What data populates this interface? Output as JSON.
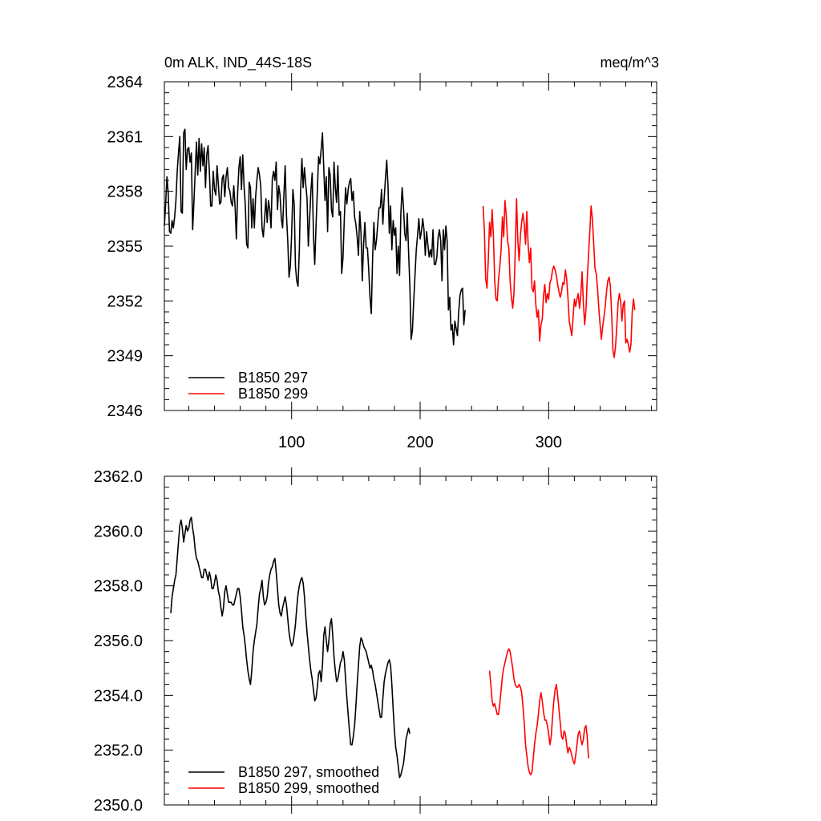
{
  "chart_data": [
    {
      "type": "line",
      "title_left": "0m ALK, IND_44S-18S",
      "title_right": "meq/m^3",
      "xlabel": "",
      "ylabel": "",
      "xlim": [
        1,
        384
      ],
      "ylim": [
        2346,
        2364
      ],
      "xticks": [
        100,
        200,
        300
      ],
      "xtick_labels": [
        "100",
        "200",
        "300"
      ],
      "yticks": [
        2346,
        2349,
        2352,
        2355,
        2358,
        2361,
        2364
      ],
      "ytick_labels": [
        "2346",
        "2349",
        "2352",
        "2355",
        "2358",
        "2361",
        "2364"
      ],
      "legend_location": "bottom-left",
      "series": [
        {
          "name": "B1850 297",
          "color": "#000000",
          "x_start": 1,
          "values": [
            2356.1,
            2357.3,
            2358.8,
            2357.9,
            2355.8,
            2355.7,
            2356.4,
            2356.0,
            2356.6,
            2357.5,
            2359.1,
            2360.1,
            2361.0,
            2356.9,
            2356.8,
            2361.2,
            2361.4,
            2359.2,
            2360.3,
            2360.4,
            2359.6,
            2360.1,
            2355.9,
            2357.4,
            2359.1,
            2360.7,
            2358.9,
            2360.9,
            2359.1,
            2360.6,
            2359.4,
            2360.4,
            2358.2,
            2360.0,
            2360.5,
            2359.1,
            2357.2,
            2357.2,
            2359.1,
            2358.1,
            2357.8,
            2359.4,
            2358.4,
            2357.3,
            2357.4,
            2358.7,
            2358.9,
            2357.7,
            2358.8,
            2359.3,
            2358.2,
            2358.0,
            2357.4,
            2357.2,
            2358.3,
            2357.2,
            2355.4,
            2357.9,
            2359.3,
            2359.9,
            2358.1,
            2360.0,
            2358.3,
            2357.2,
            2355.1,
            2354.9,
            2358.5,
            2358.2,
            2356.0,
            2357.6,
            2356.0,
            2357.7,
            2358.6,
            2359.3,
            2358.9,
            2358.3,
            2356.0,
            2355.5,
            2356.5,
            2357.6,
            2356.3,
            2357.5,
            2357.0,
            2356.0,
            2358.7,
            2359.1,
            2358.6,
            2359.6,
            2357.0,
            2358.3,
            2357.8,
            2356.5,
            2356.0,
            2357.8,
            2359.4,
            2356.7,
            2355.3,
            2353.3,
            2353.9,
            2355.6,
            2358.1,
            2357.3,
            2353.9,
            2353.1,
            2352.8,
            2354.8,
            2358.0,
            2359.8,
            2358.2,
            2359.3,
            2358.4,
            2357.6,
            2355.0,
            2356.5,
            2358.0,
            2359.0,
            2355.6,
            2354.0,
            2356.1,
            2358.0,
            2359.9,
            2359.5,
            2360.3,
            2361.2,
            2359.3,
            2357.5,
            2358.8,
            2355.8,
            2359.3,
            2358.9,
            2357.0,
            2356.6,
            2359.6,
            2358.2,
            2357.4,
            2359.4,
            2356.7,
            2356.9,
            2353.5,
            2354.4,
            2356.5,
            2358.2,
            2357.3,
            2358.1,
            2358.5,
            2358.7,
            2357.5,
            2358.0,
            2356.6,
            2356.2,
            2355.5,
            2354.5,
            2356.9,
            2355.7,
            2353.1,
            2355.1,
            2356.3,
            2354.9,
            2354.9,
            2353.7,
            2352.2,
            2351.3,
            2354.3,
            2356.3,
            2354.8,
            2355.3,
            2356.2,
            2357.1,
            2357.1,
            2358.1,
            2356.2,
            2357.6,
            2358.7,
            2359.7,
            2358.3,
            2355.7,
            2357.2,
            2354.8,
            2356.4,
            2355.6,
            2356.0,
            2353.5,
            2355.0,
            2353.4,
            2356.8,
            2358.2,
            2357.2,
            2355.7,
            2355.3,
            2356.8,
            2354.7,
            2352.8,
            2349.9,
            2350.4,
            2352.0,
            2353.4,
            2354.8,
            2355.6,
            2356.5,
            2355.4,
            2355.8,
            2356.5,
            2355.9,
            2354.5,
            2355.8,
            2355.1,
            2354.4,
            2354.8,
            2354.4,
            2355.9,
            2354.0,
            2354.0,
            2354.4,
            2355.5,
            2355.9,
            2355.3,
            2353.1,
            2355.9,
            2354.8,
            2356.1,
            2355.3,
            2351.5,
            2352.2,
            2350.4,
            2350.7,
            2349.6,
            2350.9,
            2350.5,
            2350.1,
            2351.4,
            2352.3,
            2352.6,
            2352.7,
            2350.7,
            2351.5
          ]
        },
        {
          "name": "B1850 299",
          "color": "#ff0000",
          "x_start": 249,
          "values": [
            2357.2,
            2355.8,
            2353.2,
            2352.7,
            2354.2,
            2356.3,
            2355.5,
            2357.0,
            2355.6,
            2353.1,
            2352.1,
            2352.0,
            2353.2,
            2353.9,
            2354.8,
            2356.6,
            2355.5,
            2357.5,
            2356.7,
            2355.3,
            2354.9,
            2353.1,
            2352.2,
            2351.6,
            2352.4,
            2354.8,
            2357.6,
            2355.3,
            2354.2,
            2355.6,
            2356.3,
            2356.8,
            2356.2,
            2355.1,
            2356.9,
            2355.1,
            2354.1,
            2354.9,
            2352.7,
            2352.5,
            2353.1,
            2351.8,
            2351.1,
            2351.5,
            2349.8,
            2350.7,
            2351.0,
            2352.3,
            2352.9,
            2351.9,
            2352.4,
            2352.1,
            2353.0,
            2353.2,
            2353.7,
            2353.9,
            2353.7,
            2353.4,
            2352.9,
            2352.5,
            2352.2,
            2352.5,
            2353.0,
            2352.9,
            2353.7,
            2353.2,
            2352.2,
            2350.9,
            2350.5,
            2350.1,
            2351.1,
            2352.1,
            2351.7,
            2352.1,
            2352.4,
            2351.6,
            2352.3,
            2353.6,
            2351.9,
            2350.7,
            2351.5,
            2353.2,
            2354.5,
            2355.8,
            2357.2,
            2356.5,
            2355.2,
            2353.8,
            2353.5,
            2352.7,
            2351.6,
            2350.7,
            2349.9,
            2350.6,
            2351.1,
            2351.7,
            2352.5,
            2353.1,
            2353.3,
            2352.8,
            2351.3,
            2349.3,
            2348.9,
            2349.5,
            2350.6,
            2351.9,
            2352.4,
            2352.0,
            2350.9,
            2351.8,
            2352.0,
            2349.7,
            2349.9,
            2349.6,
            2349.2,
            2349.6,
            2351.4,
            2352.1,
            2351.5
          ]
        }
      ]
    },
    {
      "type": "line",
      "xlabel": "",
      "ylabel": "",
      "xlim": [
        1,
        384
      ],
      "ylim": [
        2350,
        2362
      ],
      "yticks": [
        2350,
        2352,
        2354,
        2356,
        2358,
        2360,
        2362
      ],
      "ytick_labels": [
        "2350.0",
        "2352.0",
        "2354.0",
        "2356.0",
        "2358.0",
        "2360.0",
        "2362.0"
      ],
      "legend_location": "bottom-left",
      "series": [
        {
          "name": "B1850 297, smoothed",
          "color": "#000000",
          "x_start": 6,
          "values": [
            2357.0,
            2357.6,
            2357.9,
            2358.2,
            2358.4,
            2359.0,
            2359.6,
            2360.2,
            2360.4,
            2360.1,
            2359.6,
            2359.9,
            2360.2,
            2360.0,
            2360.1,
            2360.4,
            2360.5,
            2360.1,
            2359.8,
            2359.3,
            2359.0,
            2358.9,
            2358.7,
            2358.5,
            2358.3,
            2358.3,
            2358.6,
            2358.6,
            2358.4,
            2358.2,
            2358.5,
            2358.3,
            2357.9,
            2357.9,
            2358.1,
            2358.4,
            2358.2,
            2357.8,
            2357.6,
            2357.2,
            2356.9,
            2357.2,
            2357.8,
            2358.0,
            2357.7,
            2357.4,
            2357.4,
            2357.4,
            2357.3,
            2357.3,
            2357.5,
            2357.7,
            2357.9,
            2357.9,
            2357.6,
            2357.1,
            2356.5,
            2356.2,
            2355.8,
            2355.3,
            2354.9,
            2354.6,
            2354.4,
            2354.9,
            2355.6,
            2356.0,
            2356.3,
            2356.6,
            2357.2,
            2357.7,
            2357.9,
            2358.2,
            2357.6,
            2357.3,
            2357.4,
            2357.6,
            2358.1,
            2358.4,
            2358.6,
            2358.7,
            2358.9,
            2359.0,
            2358.5,
            2357.9,
            2357.3,
            2357.0,
            2356.9,
            2357.2,
            2357.4,
            2357.6,
            2357.3,
            2356.8,
            2356.3,
            2356.0,
            2355.8,
            2355.9,
            2356.2,
            2356.6,
            2357.2,
            2357.7,
            2358.0,
            2358.2,
            2358.3,
            2358.1,
            2357.6,
            2356.9,
            2356.3,
            2355.8,
            2355.3,
            2354.9,
            2354.6,
            2354.2,
            2353.8,
            2353.9,
            2354.3,
            2354.8,
            2354.9,
            2354.5,
            2355.1,
            2356.2,
            2356.5,
            2356.0,
            2355.6,
            2356.0,
            2356.6,
            2356.8,
            2356.2,
            2355.4,
            2354.9,
            2354.5,
            2354.6,
            2354.9,
            2355.2,
            2355.3,
            2355.6,
            2355.3,
            2354.6,
            2353.9,
            2353.3,
            2352.7,
            2352.2,
            2352.2,
            2352.5,
            2352.9,
            2353.6,
            2354.4,
            2355.1,
            2355.8,
            2356.1,
            2356.0,
            2355.8,
            2355.7,
            2355.6,
            2355.4,
            2355.2,
            2355.0,
            2355.1,
            2354.9,
            2354.6,
            2354.4,
            2354.1,
            2353.8,
            2353.5,
            2353.2,
            2353.2,
            2353.9,
            2354.5,
            2354.8,
            2355.0,
            2355.2,
            2355.3,
            2355.1,
            2354.4,
            2353.5,
            2352.7,
            2352.1,
            2351.8,
            2351.4,
            2351.0,
            2351.1,
            2351.3,
            2351.5,
            2351.9,
            2352.4,
            2352.6,
            2352.8,
            2352.6
          ]
        },
        {
          "name": "B1850 299, smoothed",
          "color": "#ff0000",
          "x_start": 254,
          "values": [
            2354.9,
            2354.4,
            2353.8,
            2353.6,
            2353.7,
            2353.5,
            2353.3,
            2353.3,
            2353.7,
            2354.2,
            2354.7,
            2355.0,
            2355.2,
            2355.4,
            2355.6,
            2355.7,
            2355.6,
            2355.3,
            2355.0,
            2354.6,
            2354.4,
            2354.3,
            2354.3,
            2354.4,
            2354.3,
            2354.1,
            2353.6,
            2353.0,
            2352.2,
            2351.8,
            2351.4,
            2351.2,
            2351.1,
            2351.2,
            2351.7,
            2352.2,
            2352.6,
            2352.9,
            2353.3,
            2353.8,
            2354.1,
            2353.8,
            2353.4,
            2353.1,
            2353.1,
            2352.9,
            2352.6,
            2352.2,
            2352.5,
            2353.2,
            2353.8,
            2354.2,
            2354.4,
            2354.0,
            2353.5,
            2353.0,
            2352.5,
            2352.4,
            2352.7,
            2352.6,
            2352.2,
            2351.9,
            2352.1,
            2352.0,
            2351.8,
            2351.6,
            2351.5,
            2351.8,
            2352.2,
            2352.6,
            2352.7,
            2352.4,
            2352.2,
            2352.4,
            2352.8,
            2352.9,
            2352.5,
            2351.7
          ]
        }
      ]
    }
  ]
}
